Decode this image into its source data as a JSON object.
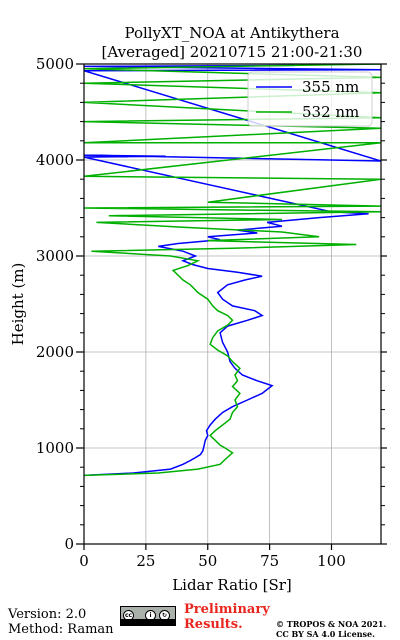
{
  "chart_data": {
    "type": "line",
    "title": "PollyXT_NOA at Antikythera",
    "subtitle": "[Averaged] 20210715 21:00-21:30",
    "xlabel": "Lidar Ratio [Sr]",
    "ylabel": "Height (m)",
    "xlim": [
      0,
      120
    ],
    "ylim": [
      0,
      5000
    ],
    "xticks": [
      0,
      25,
      50,
      75,
      100
    ],
    "yticks": [
      0,
      1000,
      2000,
      3000,
      4000,
      5000
    ],
    "grid": true,
    "legend_position": "top-right",
    "series": [
      {
        "name": "355 nm",
        "color": "#0000ff",
        "points": [
          [
            0,
            715
          ],
          [
            20,
            740
          ],
          [
            35,
            780
          ],
          [
            40,
            830
          ],
          [
            43,
            870
          ],
          [
            45,
            900
          ],
          [
            47,
            930
          ],
          [
            48,
            970
          ],
          [
            48.5,
            1020
          ],
          [
            49,
            1080
          ],
          [
            50,
            1130
          ],
          [
            49.5,
            1180
          ],
          [
            51,
            1240
          ],
          [
            53,
            1300
          ],
          [
            56,
            1370
          ],
          [
            60,
            1430
          ],
          [
            66,
            1500
          ],
          [
            72,
            1570
          ],
          [
            76,
            1650
          ],
          [
            70,
            1700
          ],
          [
            64,
            1760
          ],
          [
            61,
            1830
          ],
          [
            59,
            1900
          ],
          [
            58,
            2000
          ],
          [
            56,
            2100
          ],
          [
            55,
            2200
          ],
          [
            58,
            2270
          ],
          [
            66,
            2330
          ],
          [
            72,
            2380
          ],
          [
            69,
            2430
          ],
          [
            60,
            2480
          ],
          [
            56,
            2550
          ],
          [
            54,
            2620
          ],
          [
            58,
            2700
          ],
          [
            65,
            2750
          ],
          [
            72,
            2790
          ],
          [
            62,
            2830
          ],
          [
            50,
            2870
          ],
          [
            44,
            2910
          ],
          [
            40,
            2950
          ],
          [
            45,
            3000
          ],
          [
            40,
            3050
          ],
          [
            30,
            3100
          ],
          [
            38,
            3130
          ],
          [
            55,
            3170
          ],
          [
            50,
            3200
          ],
          [
            70,
            3240
          ],
          [
            62,
            3270
          ],
          [
            80,
            3310
          ],
          [
            74,
            3350
          ],
          [
            95,
            3400
          ],
          [
            115,
            3440
          ],
          [
            100,
            3460
          ],
          [
            0,
            4030
          ],
          [
            33,
            4040
          ],
          [
            0,
            4050
          ],
          [
            120,
            3990
          ],
          [
            0,
            4930
          ],
          [
            120,
            4940
          ],
          [
            0,
            4975
          ],
          [
            85,
            4985
          ]
        ]
      },
      {
        "name": "532 nm",
        "color": "#00b000",
        "points": [
          [
            0,
            715
          ],
          [
            30,
            740
          ],
          [
            46,
            780
          ],
          [
            55,
            830
          ],
          [
            57,
            880
          ],
          [
            60,
            950
          ],
          [
            57,
            1000
          ],
          [
            55,
            1030
          ],
          [
            53,
            1080
          ],
          [
            51,
            1130
          ],
          [
            53,
            1180
          ],
          [
            56,
            1240
          ],
          [
            59,
            1300
          ],
          [
            60,
            1370
          ],
          [
            62,
            1430
          ],
          [
            61,
            1500
          ],
          [
            63,
            1570
          ],
          [
            60,
            1640
          ],
          [
            62,
            1700
          ],
          [
            61,
            1760
          ],
          [
            63,
            1830
          ],
          [
            60,
            1900
          ],
          [
            58,
            1960
          ],
          [
            54,
            2020
          ],
          [
            51,
            2080
          ],
          [
            52,
            2150
          ],
          [
            54,
            2220
          ],
          [
            58,
            2280
          ],
          [
            60,
            2330
          ],
          [
            58,
            2380
          ],
          [
            54,
            2430
          ],
          [
            52,
            2480
          ],
          [
            50,
            2550
          ],
          [
            46,
            2620
          ],
          [
            43,
            2700
          ],
          [
            40,
            2750
          ],
          [
            38,
            2800
          ],
          [
            36,
            2850
          ],
          [
            42,
            2900
          ],
          [
            46,
            2950
          ],
          [
            35,
            3000
          ],
          [
            3,
            3050
          ],
          [
            60,
            3080
          ],
          [
            110,
            3120
          ],
          [
            50,
            3160
          ],
          [
            95,
            3200
          ],
          [
            80,
            3250
          ],
          [
            40,
            3300
          ],
          [
            5,
            3350
          ],
          [
            80,
            3380
          ],
          [
            10,
            3420
          ],
          [
            120,
            3460
          ],
          [
            0,
            3500
          ],
          [
            120,
            3520
          ],
          [
            50,
            3560
          ],
          [
            120,
            3800
          ],
          [
            0,
            3830
          ],
          [
            120,
            4180
          ],
          [
            0,
            4180
          ],
          [
            120,
            4330
          ],
          [
            0,
            4400
          ],
          [
            120,
            4440
          ],
          [
            0,
            4600
          ],
          [
            120,
            4700
          ],
          [
            0,
            4800
          ],
          [
            120,
            4860
          ],
          [
            0,
            4950
          ],
          [
            120,
            5000
          ]
        ]
      }
    ]
  },
  "footer": {
    "version": "Version: 2.0",
    "method": "Method: Raman",
    "preliminary_line1": "Preliminary",
    "preliminary_line2": "Results.",
    "copyright_line1": "© TROPOS & NOA 2021.",
    "copyright_line2": "CC BY SA 4.0 License.",
    "cc_icons": [
      "cc-icon",
      "by-icon",
      "sa-icon"
    ]
  }
}
